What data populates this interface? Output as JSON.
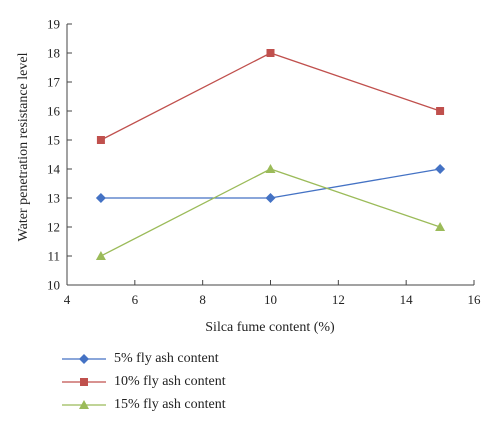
{
  "chart_data": {
    "type": "line",
    "title": "",
    "xlabel": "Silca fume content (%)",
    "ylabel": "Water penetration resistance level",
    "xlim": [
      4,
      16
    ],
    "ylim": [
      10,
      19
    ],
    "xticks": [
      4,
      6,
      8,
      10,
      12,
      14,
      16
    ],
    "yticks": [
      10,
      11,
      12,
      13,
      14,
      15,
      16,
      17,
      18,
      19
    ],
    "x": [
      5,
      10,
      15
    ],
    "grid": false,
    "legend_position": "bottom-left",
    "series": [
      {
        "name": "5% fly ash content",
        "values": [
          13,
          13,
          14
        ],
        "color": "#4472C4",
        "marker": "diamond"
      },
      {
        "name": "10% fly ash content",
        "values": [
          15,
          18,
          16
        ],
        "color": "#C0504D",
        "marker": "square"
      },
      {
        "name": "15% fly ash content",
        "values": [
          11,
          14,
          12
        ],
        "color": "#9BBB59",
        "marker": "triangle"
      }
    ]
  }
}
